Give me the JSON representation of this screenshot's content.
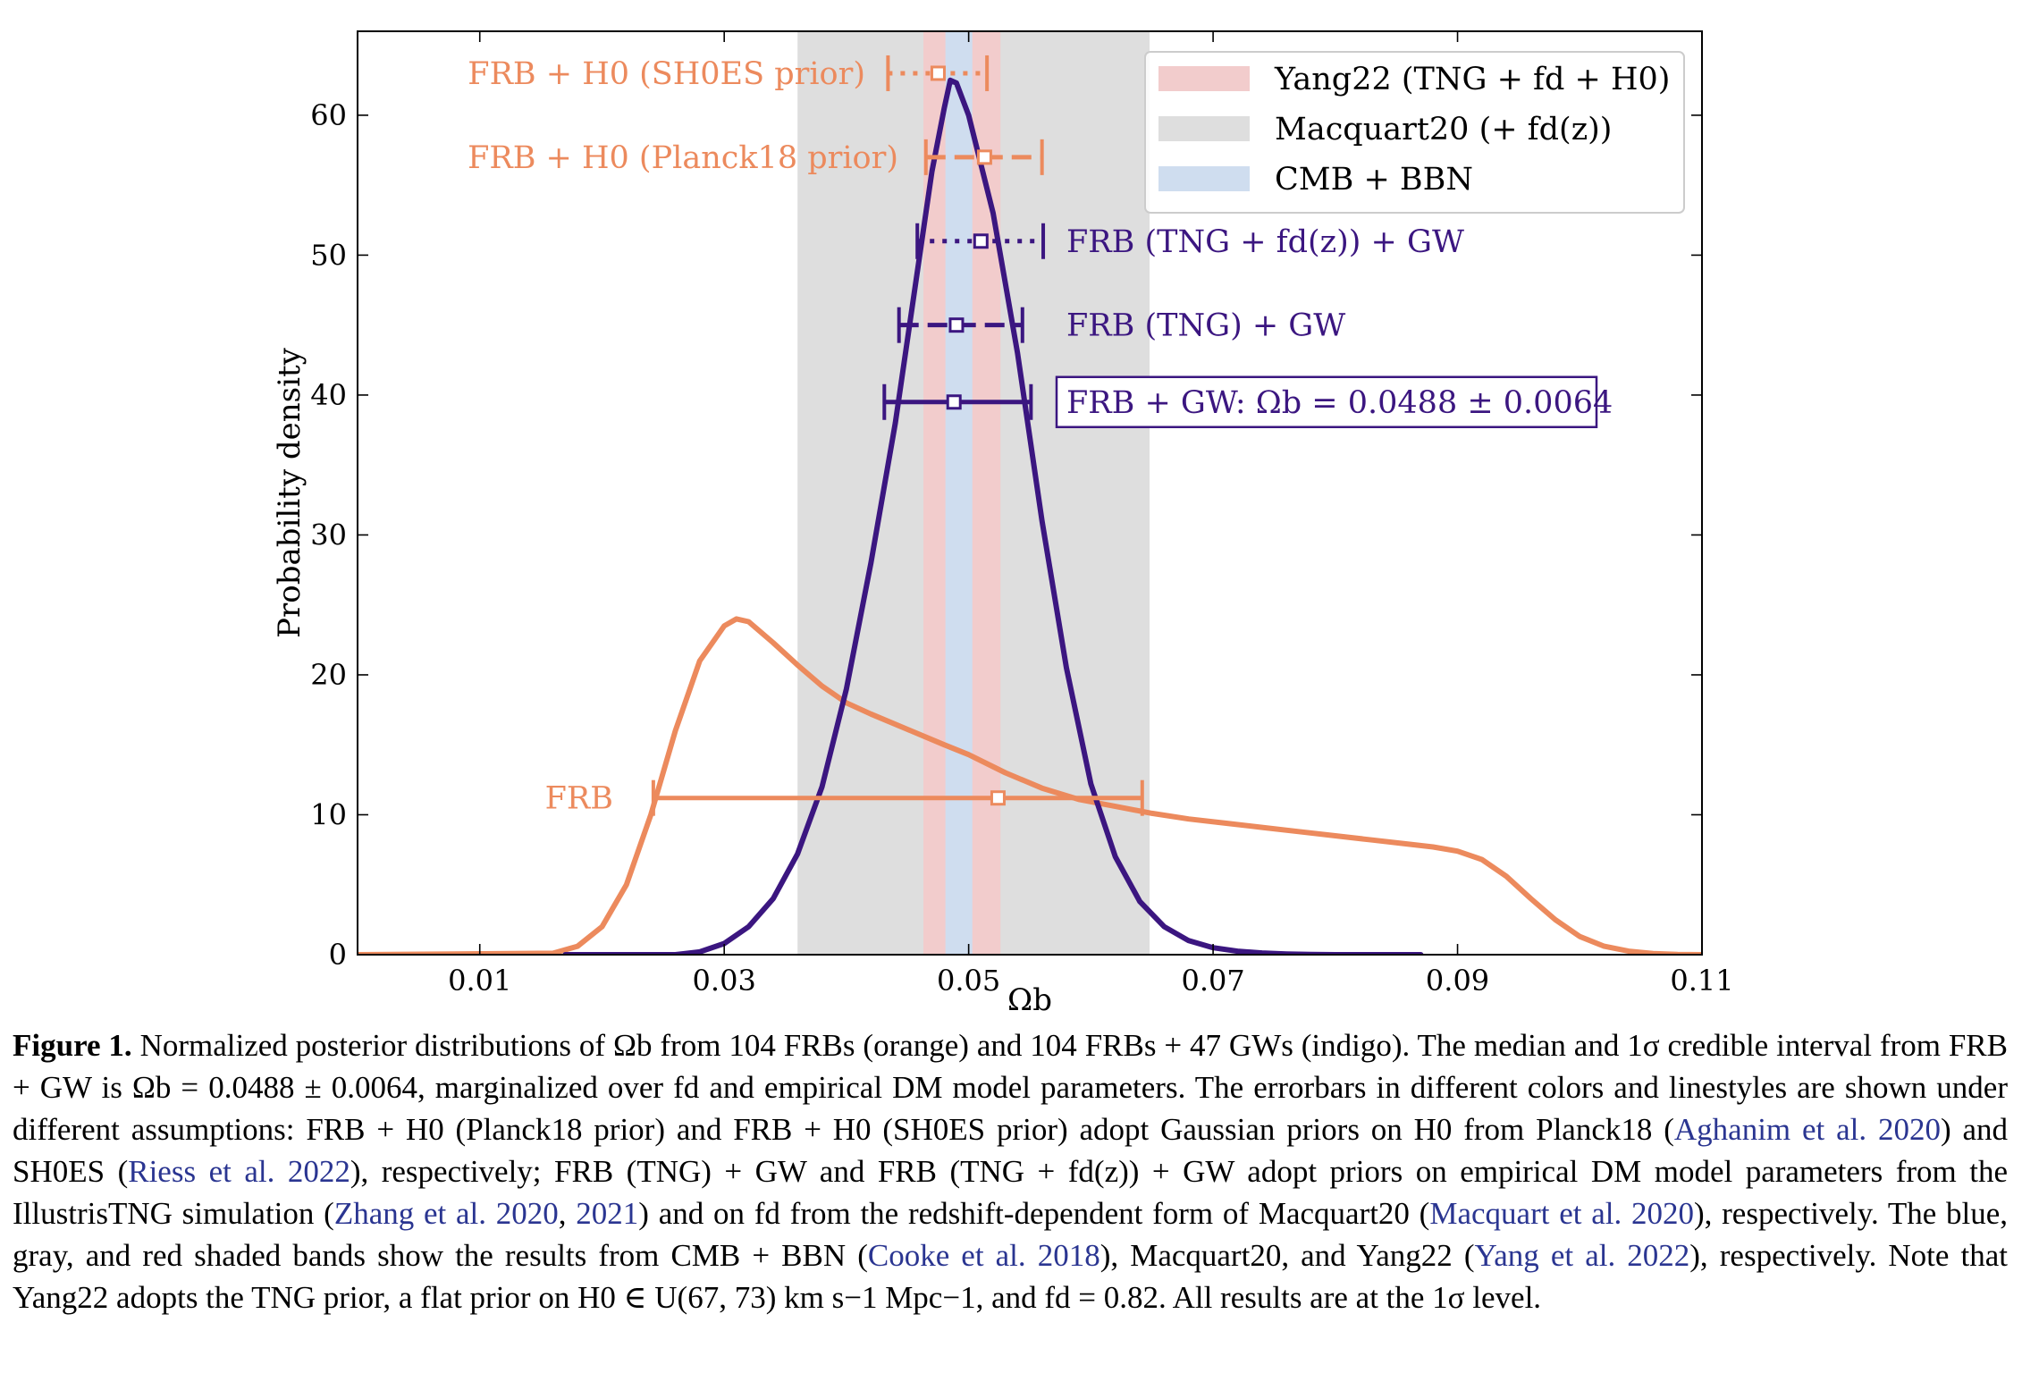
{
  "chart_data": {
    "type": "line",
    "xlabel": "Ωb",
    "ylabel": "Probability density",
    "xlim": [
      0.0,
      0.11
    ],
    "ylim": [
      0,
      66
    ],
    "x_ticks": [
      0.01,
      0.03,
      0.05,
      0.07,
      0.09,
      0.11
    ],
    "x_tick_labels": [
      "0.01",
      "0.03",
      "0.05",
      "0.07",
      "0.09",
      "0.11"
    ],
    "y_ticks": [
      0,
      10,
      20,
      30,
      40,
      50,
      60
    ],
    "y_tick_labels": [
      "0",
      "10",
      "20",
      "30",
      "40",
      "50",
      "60"
    ],
    "colors": {
      "frb": "#ec8a5d",
      "frbgw": "#3b1680",
      "yang": "#f2cccc",
      "macquart": "#dedede",
      "cmb": "#cfddef"
    },
    "bands": [
      {
        "label": "Macquart20 (+ fd(z))",
        "range": [
          0.036,
          0.0648
        ],
        "color": "#dedede"
      },
      {
        "label": "Yang22 (TNG + fd + H0)",
        "range": [
          0.0463,
          0.0526
        ],
        "color": "#f2cccc"
      },
      {
        "label": "CMB + BBN",
        "range": [
          0.0481,
          0.0503
        ],
        "color": "#cfddef"
      }
    ],
    "legend": {
      "placement": "top-right",
      "entries": [
        "Yang22 (TNG + fd + H0)",
        "Macquart20 (+ fd(z))",
        "CMB + BBN"
      ]
    },
    "series": [
      {
        "name": "FRB",
        "color": "#ec8a5d",
        "x": [
          0.0,
          0.016,
          0.018,
          0.02,
          0.022,
          0.024,
          0.026,
          0.028,
          0.03,
          0.031,
          0.032,
          0.034,
          0.036,
          0.038,
          0.04,
          0.042,
          0.045,
          0.048,
          0.05,
          0.053,
          0.056,
          0.059,
          0.062,
          0.065,
          0.068,
          0.071,
          0.074,
          0.077,
          0.08,
          0.083,
          0.086,
          0.088,
          0.09,
          0.092,
          0.094,
          0.096,
          0.098,
          0.1,
          0.102,
          0.104,
          0.106,
          0.108,
          0.11
        ],
        "y": [
          0.0,
          0.1,
          0.6,
          2.0,
          5.0,
          10.0,
          16.0,
          21.0,
          23.5,
          24.0,
          23.8,
          22.3,
          20.7,
          19.2,
          18.0,
          17.2,
          16.1,
          15.0,
          14.3,
          13.0,
          11.9,
          11.1,
          10.6,
          10.1,
          9.7,
          9.4,
          9.1,
          8.8,
          8.5,
          8.2,
          7.9,
          7.7,
          7.4,
          6.8,
          5.6,
          4.0,
          2.5,
          1.3,
          0.6,
          0.25,
          0.08,
          0.02,
          0.0
        ]
      },
      {
        "name": "FRB + GW",
        "color": "#3b1680",
        "x": [
          0.017,
          0.026,
          0.028,
          0.03,
          0.032,
          0.034,
          0.036,
          0.038,
          0.04,
          0.042,
          0.044,
          0.046,
          0.047,
          0.048,
          0.0485,
          0.049,
          0.05,
          0.052,
          0.054,
          0.056,
          0.058,
          0.06,
          0.062,
          0.064,
          0.066,
          0.068,
          0.07,
          0.072,
          0.074,
          0.076,
          0.078,
          0.08,
          0.083,
          0.087
        ],
        "y": [
          0.0,
          0.0,
          0.2,
          0.8,
          2.0,
          4.0,
          7.2,
          12.0,
          19.0,
          28.0,
          38.0,
          50.0,
          56.0,
          60.5,
          62.5,
          62.3,
          60.0,
          53.0,
          43.0,
          31.0,
          20.5,
          12.2,
          7.0,
          3.8,
          2.0,
          1.0,
          0.5,
          0.25,
          0.12,
          0.05,
          0.02,
          0.0,
          0.0,
          0.0
        ]
      }
    ],
    "errorbars": [
      {
        "label": "FRB + H0 (SH0ES prior)",
        "center": 0.0475,
        "low": 0.0434,
        "high": 0.0515,
        "y": 63,
        "color": "#ec8a5d",
        "style": "dotted"
      },
      {
        "label": "FRB + H0 (Planck18 prior)",
        "center": 0.0513,
        "low": 0.0465,
        "high": 0.056,
        "y": 57,
        "color": "#ec8a5d",
        "style": "dashed"
      },
      {
        "label": "FRB (TNG + fd(z)) + GW",
        "center": 0.051,
        "low": 0.0458,
        "high": 0.0561,
        "y": 51,
        "color": "#3b1680",
        "style": "dotted"
      },
      {
        "label": "FRB (TNG) + GW",
        "center": 0.049,
        "low": 0.0443,
        "high": 0.0544,
        "y": 45,
        "color": "#3b1680",
        "style": "dashed"
      },
      {
        "label": "FRB + GW: Ωb = 0.0488 ± 0.0064",
        "center": 0.0488,
        "low": 0.0431,
        "high": 0.0551,
        "y": 39.5,
        "color": "#3b1680",
        "style": "solid",
        "boxed": true
      },
      {
        "label": "FRB",
        "center": 0.0524,
        "low": 0.0242,
        "high": 0.0642,
        "y": 11.2,
        "color": "#ec8a5d",
        "style": "solid"
      }
    ]
  },
  "caption": {
    "fig_label": "Figure 1.",
    "p1": " Normalized posterior distributions of Ωb from 104 FRBs (orange) and 104 FRBs + 47 GWs (indigo). The median and 1σ credible interval from FRB + GW is Ωb = 0.0488 ± 0.0064, marginalized over fd and empirical DM model parameters. The errorbars in different colors and linestyles are shown under different assumptions: FRB + H0 (Planck18 prior) and FRB + H0 (SH0ES prior) adopt Gaussian priors on H0 from Planck18 (",
    "c1": "Aghanim et al. 2020",
    "p2": ") and SH0ES (",
    "c2": "Riess et al. 2022",
    "p3": "), respectively; FRB (TNG) + GW and FRB (TNG + fd(z)) + GW adopt priors on empirical DM model parameters from the IllustrisTNG simulation (",
    "c3": "Zhang et al. 2020",
    "p4": ", ",
    "c4": "2021",
    "p5": ") and on fd from the redshift-dependent form of Macquart20 (",
    "c5": "Macquart et al. 2020",
    "p6": "), respectively. The blue, gray, and red shaded bands show the results from CMB + BBN (",
    "c6": "Cooke et al. 2018",
    "p7": "), Macquart20, and Yang22 (",
    "c7": "Yang et al. 2022",
    "p8": "), respectively. Note that Yang22 adopts the TNG prior, a flat prior on H0 ∈ U(67, 73) km s−1 Mpc−1, and fd = 0.82. All results are at the 1σ level."
  }
}
